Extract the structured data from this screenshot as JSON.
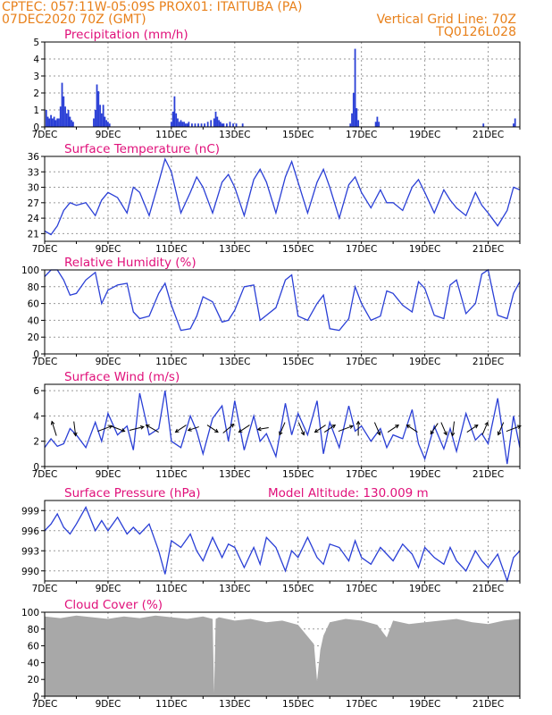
{
  "header": {
    "left_line1": "CPTEC:   057:11W-05:09S   PROX01: ITAITUBA (PA)",
    "left_line2": "07DEC2020 70Z (GMT)",
    "right_line1": "Vertical Grid Line: 70Z",
    "right_line2": "TQ0126L028"
  },
  "colors": {
    "header": "#e8801a",
    "panel_title": "#e0107a",
    "series": "#2a3fd6",
    "cloud": "#a8a8a8",
    "grid": "#9a9a9a"
  },
  "x_labels": [
    "7DEC",
    "9DEC",
    "11DEC",
    "13DEC",
    "15DEC",
    "17DEC",
    "19DEC",
    "21DEC"
  ],
  "x_range_days": [
    0,
    15
  ],
  "chart_data": [
    {
      "id": "precip",
      "type": "bar",
      "title": "Precipitation (mm/h)",
      "ylim": [
        0,
        5
      ],
      "yticks": [
        0,
        1,
        2,
        3,
        4,
        5
      ],
      "x": [
        0.05,
        0.1,
        0.15,
        0.2,
        0.25,
        0.3,
        0.35,
        0.4,
        0.45,
        0.5,
        0.55,
        0.6,
        0.65,
        0.7,
        0.75,
        0.8,
        0.85,
        0.9,
        1.55,
        1.6,
        1.65,
        1.7,
        1.75,
        1.8,
        1.85,
        1.9,
        1.95,
        2.0,
        2.05,
        4.0,
        4.05,
        4.1,
        4.15,
        4.2,
        4.25,
        4.3,
        4.35,
        4.4,
        4.45,
        4.5,
        4.55,
        4.65,
        4.75,
        4.85,
        4.95,
        5.05,
        5.15,
        5.25,
        5.35,
        5.4,
        5.45,
        5.5,
        5.55,
        5.6,
        5.65,
        5.75,
        5.85,
        5.95,
        6.05,
        6.25,
        9.65,
        9.7,
        9.75,
        9.8,
        9.85,
        9.9,
        10.45,
        10.5,
        10.55,
        13.85,
        14.8,
        14.85
      ],
      "values": [
        1.0,
        0.6,
        0.5,
        0.7,
        0.5,
        0.6,
        0.4,
        0.5,
        0.5,
        1.2,
        2.6,
        1.8,
        1.2,
        0.8,
        1.0,
        0.6,
        0.4,
        0.3,
        0.5,
        1.0,
        2.5,
        2.1,
        1.3,
        0.8,
        1.3,
        0.6,
        0.4,
        0.3,
        0.2,
        0.3,
        0.9,
        1.8,
        0.8,
        0.5,
        0.3,
        0.4,
        0.3,
        0.3,
        0.2,
        0.2,
        0.3,
        0.2,
        0.2,
        0.2,
        0.2,
        0.2,
        0.3,
        0.4,
        0.5,
        0.9,
        0.6,
        0.4,
        0.3,
        0.2,
        0.2,
        0.2,
        0.3,
        0.2,
        0.2,
        0.2,
        0.2,
        0.8,
        2.0,
        4.6,
        1.1,
        0.4,
        0.3,
        0.6,
        0.3,
        0.2,
        0.2,
        0.5
      ]
    },
    {
      "id": "temp",
      "type": "line",
      "title": "Surface Temperature (nC)",
      "ylim": [
        19.5,
        36
      ],
      "yticks": [
        21,
        24,
        27,
        30,
        33,
        36
      ],
      "x": [
        0.0,
        0.2,
        0.4,
        0.6,
        0.8,
        1.0,
        1.3,
        1.6,
        1.8,
        2.0,
        2.3,
        2.6,
        2.8,
        3.0,
        3.3,
        3.6,
        3.8,
        4.0,
        4.3,
        4.6,
        4.8,
        5.0,
        5.3,
        5.6,
        5.8,
        6.0,
        6.3,
        6.6,
        6.8,
        7.0,
        7.3,
        7.6,
        7.8,
        8.0,
        8.3,
        8.6,
        8.8,
        9.0,
        9.3,
        9.6,
        9.8,
        10.0,
        10.3,
        10.6,
        10.8,
        11.0,
        11.3,
        11.6,
        11.8,
        12.0,
        12.3,
        12.6,
        12.8,
        13.0,
        13.3,
        13.6,
        13.8,
        14.0,
        14.3,
        14.6,
        14.8,
        15.0
      ],
      "values": [
        21.5,
        20.8,
        22.5,
        25.5,
        27.0,
        26.5,
        27.0,
        24.5,
        27.5,
        29.0,
        28.0,
        25.0,
        30.0,
        29.0,
        24.5,
        31.0,
        35.5,
        33.0,
        25.0,
        29.0,
        32.0,
        30.0,
        25.0,
        31.0,
        32.5,
        30.0,
        24.5,
        31.5,
        33.5,
        31.0,
        25.0,
        32.0,
        35.0,
        31.0,
        25.0,
        31.0,
        33.5,
        30.0,
        24.0,
        30.5,
        32.0,
        29.0,
        26.0,
        29.5,
        27.0,
        27.0,
        25.5,
        30.0,
        31.5,
        29.0,
        25.0,
        29.5,
        27.5,
        26.0,
        24.5,
        29.0,
        26.5,
        25.0,
        22.5,
        25.5,
        30.0,
        29.5
      ]
    },
    {
      "id": "rh",
      "type": "line",
      "title": "Relative Humidity (%)",
      "ylim": [
        0,
        100
      ],
      "yticks": [
        0,
        20,
        40,
        60,
        80,
        100
      ],
      "x": [
        0.0,
        0.2,
        0.4,
        0.6,
        0.8,
        1.0,
        1.3,
        1.6,
        1.8,
        2.0,
        2.3,
        2.6,
        2.8,
        3.0,
        3.3,
        3.6,
        3.8,
        4.0,
        4.3,
        4.6,
        4.8,
        5.0,
        5.3,
        5.6,
        5.8,
        6.0,
        6.3,
        6.6,
        6.8,
        7.0,
        7.3,
        7.6,
        7.8,
        8.0,
        8.3,
        8.6,
        8.8,
        9.0,
        9.3,
        9.6,
        9.8,
        10.0,
        10.3,
        10.6,
        10.8,
        11.0,
        11.3,
        11.6,
        11.8,
        12.0,
        12.3,
        12.6,
        12.8,
        13.0,
        13.3,
        13.6,
        13.8,
        14.0,
        14.3,
        14.6,
        14.8,
        15.0
      ],
      "values": [
        92,
        100,
        100,
        88,
        70,
        72,
        88,
        97,
        60,
        76,
        82,
        84,
        50,
        42,
        45,
        72,
        84,
        58,
        28,
        30,
        45,
        68,
        62,
        38,
        40,
        52,
        80,
        82,
        40,
        46,
        55,
        88,
        94,
        45,
        40,
        60,
        70,
        30,
        28,
        42,
        80,
        60,
        40,
        45,
        75,
        72,
        58,
        50,
        86,
        78,
        46,
        42,
        82,
        88,
        48,
        60,
        95,
        100,
        46,
        42,
        72,
        86
      ]
    },
    {
      "id": "wind",
      "type": "line",
      "title": "Surface Wind (m/s)",
      "ylim": [
        0,
        6.5
      ],
      "yticks": [
        0,
        2,
        4,
        6
      ],
      "x": [
        0.0,
        0.2,
        0.4,
        0.6,
        0.8,
        1.0,
        1.3,
        1.6,
        1.8,
        2.0,
        2.3,
        2.6,
        2.8,
        3.0,
        3.3,
        3.6,
        3.8,
        4.0,
        4.3,
        4.6,
        4.8,
        5.0,
        5.3,
        5.6,
        5.8,
        6.0,
        6.3,
        6.6,
        6.8,
        7.0,
        7.3,
        7.6,
        7.8,
        8.0,
        8.3,
        8.6,
        8.8,
        9.0,
        9.3,
        9.6,
        9.8,
        10.0,
        10.3,
        10.6,
        10.8,
        11.0,
        11.3,
        11.6,
        11.8,
        12.0,
        12.3,
        12.6,
        12.8,
        13.0,
        13.3,
        13.6,
        13.8,
        14.0,
        14.3,
        14.6,
        14.8,
        15.0
      ],
      "values": [
        1.5,
        2.2,
        1.6,
        1.8,
        3.0,
        2.5,
        1.5,
        3.5,
        2.0,
        4.2,
        2.5,
        3.2,
        1.3,
        5.8,
        2.5,
        3.0,
        6.0,
        2.0,
        1.5,
        4.0,
        2.8,
        1.0,
        3.8,
        4.8,
        2.0,
        5.2,
        1.3,
        4.0,
        2.0,
        2.6,
        0.8,
        5.0,
        2.5,
        4.2,
        2.5,
        5.2,
        1.0,
        3.5,
        1.5,
        4.8,
        2.8,
        3.2,
        2.0,
        3.0,
        1.5,
        2.5,
        2.2,
        4.5,
        1.8,
        0.6,
        3.2,
        1.4,
        3.0,
        1.2,
        4.2,
        2.1,
        2.6,
        1.8,
        5.4,
        0.2,
        4.0,
        1.5
      ],
      "arrows": [
        {
          "x": 0.3,
          "dx": -0.25,
          "dy": 0.8
        },
        {
          "x": 0.95,
          "dx": 0.1,
          "dy": -0.8
        },
        {
          "x": 1.9,
          "dx": 0.8,
          "dy": 0.3
        },
        {
          "x": 2.3,
          "dx": 0.8,
          "dy": -0.3
        },
        {
          "x": 2.9,
          "dx": 0.8,
          "dy": 0.2
        },
        {
          "x": 3.4,
          "dx": -0.7,
          "dy": 0.4
        },
        {
          "x": 4.3,
          "dx": -0.6,
          "dy": -0.4
        },
        {
          "x": 4.7,
          "dx": -0.6,
          "dy": -0.2
        },
        {
          "x": 5.3,
          "dx": 0.6,
          "dy": -0.4
        },
        {
          "x": 5.8,
          "dx": 0.6,
          "dy": 0.5
        },
        {
          "x": 6.3,
          "dx": -0.6,
          "dy": -0.4
        },
        {
          "x": 6.9,
          "dx": -0.6,
          "dy": -0.1
        },
        {
          "x": 7.5,
          "dx": -0.3,
          "dy": -0.7
        },
        {
          "x": 8.1,
          "dx": 0.3,
          "dy": -0.7
        },
        {
          "x": 8.7,
          "dx": -0.6,
          "dy": -0.4
        },
        {
          "x": 9.0,
          "dx": 0.6,
          "dy": 0.4
        },
        {
          "x": 9.5,
          "dx": 0.8,
          "dy": 0.3
        },
        {
          "x": 9.9,
          "dx": 0.0,
          "dy": 0.8
        },
        {
          "x": 10.5,
          "dx": 0.3,
          "dy": -0.7
        },
        {
          "x": 11.0,
          "dx": 0.6,
          "dy": 0.4
        },
        {
          "x": 11.6,
          "dx": -0.6,
          "dy": 0.4
        },
        {
          "x": 12.3,
          "dx": -0.4,
          "dy": -0.6
        },
        {
          "x": 12.6,
          "dx": 0.3,
          "dy": -0.7
        },
        {
          "x": 12.9,
          "dx": -0.1,
          "dy": -0.8
        },
        {
          "x": 13.5,
          "dx": 0.6,
          "dy": 0.4
        },
        {
          "x": 13.9,
          "dx": 0.3,
          "dy": 0.7
        },
        {
          "x": 14.4,
          "dx": -0.3,
          "dy": -0.7
        },
        {
          "x": 14.8,
          "dx": 0.8,
          "dy": 0.3
        }
      ]
    },
    {
      "id": "pres",
      "type": "line",
      "title": "Surface Pressure (hPa)",
      "extra_label": "Model Altitude: 130.009 m",
      "ylim": [
        988.5,
        1000.5
      ],
      "yticks": [
        990,
        993,
        996,
        999
      ],
      "x": [
        0.0,
        0.2,
        0.4,
        0.6,
        0.8,
        1.0,
        1.3,
        1.6,
        1.8,
        2.0,
        2.3,
        2.6,
        2.8,
        3.0,
        3.3,
        3.6,
        3.8,
        4.0,
        4.3,
        4.6,
        4.8,
        5.0,
        5.3,
        5.6,
        5.8,
        6.0,
        6.3,
        6.6,
        6.8,
        7.0,
        7.3,
        7.6,
        7.8,
        8.0,
        8.3,
        8.6,
        8.8,
        9.0,
        9.3,
        9.6,
        9.8,
        10.0,
        10.3,
        10.6,
        10.8,
        11.0,
        11.3,
        11.6,
        11.8,
        12.0,
        12.3,
        12.6,
        12.8,
        13.0,
        13.3,
        13.6,
        13.8,
        14.0,
        14.3,
        14.6,
        14.8,
        15.0
      ],
      "values": [
        996.0,
        997.0,
        998.5,
        996.5,
        995.5,
        997.0,
        999.5,
        996.0,
        997.5,
        996.0,
        998.0,
        995.5,
        996.5,
        995.5,
        997.0,
        993.0,
        989.5,
        994.5,
        993.5,
        995.5,
        993.0,
        991.5,
        995.0,
        992.0,
        994.0,
        993.5,
        990.5,
        993.5,
        991.0,
        995.0,
        993.5,
        990.0,
        993.0,
        992.0,
        995.0,
        992.0,
        991.0,
        994.0,
        993.5,
        991.5,
        994.5,
        992.0,
        991.0,
        993.5,
        992.5,
        991.5,
        994.0,
        992.5,
        990.5,
        993.5,
        992.0,
        991.0,
        993.5,
        991.5,
        990.0,
        993.0,
        991.5,
        990.5,
        992.5,
        988.5,
        992.0,
        993.0
      ]
    },
    {
      "id": "cloud",
      "type": "area",
      "title": "Cloud Cover (%)",
      "ylim": [
        0,
        100
      ],
      "yticks": [
        0,
        20,
        40,
        60,
        80,
        100
      ],
      "x": [
        0.0,
        0.5,
        1.0,
        1.5,
        2.0,
        2.5,
        3.0,
        3.5,
        4.0,
        4.5,
        5.0,
        5.3,
        5.35,
        5.4,
        5.5,
        6.0,
        6.5,
        7.0,
        7.5,
        8.0,
        8.5,
        8.6,
        8.7,
        8.8,
        9.0,
        9.5,
        10.0,
        10.5,
        10.8,
        11.0,
        11.5,
        12.0,
        12.5,
        13.0,
        13.5,
        14.0,
        14.5,
        15.0
      ],
      "values": [
        95,
        93,
        96,
        94,
        92,
        95,
        93,
        96,
        94,
        92,
        95,
        92,
        4,
        92,
        94,
        90,
        92,
        88,
        90,
        85,
        62,
        18,
        55,
        72,
        88,
        92,
        90,
        85,
        70,
        90,
        86,
        88,
        90,
        92,
        88,
        86,
        90,
        92
      ]
    }
  ]
}
